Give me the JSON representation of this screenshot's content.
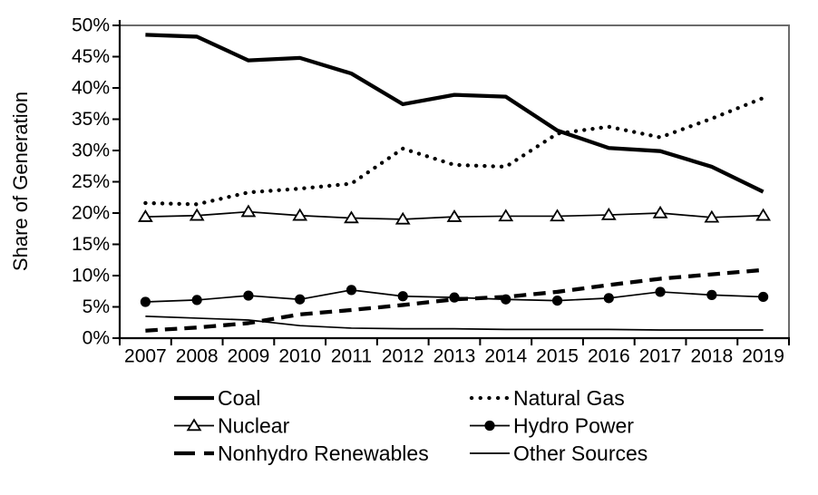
{
  "chart_data": {
    "type": "line",
    "title": "",
    "xlabel": "",
    "ylabel": "Share of Generation",
    "ylim": [
      0,
      50
    ],
    "grid": false,
    "legend_position": "bottom, two columns",
    "y_ticks": [
      "0%",
      "5%",
      "10%",
      "15%",
      "20%",
      "25%",
      "30%",
      "35%",
      "40%",
      "45%",
      "50%"
    ],
    "y_tick_values": [
      0,
      5,
      10,
      15,
      20,
      25,
      30,
      35,
      40,
      45,
      50
    ],
    "x_labels": [
      "2007",
      "2008",
      "2009",
      "2010",
      "2011",
      "2012",
      "2013",
      "2014",
      "2015",
      "2016",
      "2017",
      "2018",
      "2019"
    ],
    "series": [
      {
        "name": "Coal",
        "style": "solid",
        "weight": "thick",
        "marker": "none",
        "values": [
          48.5,
          48.2,
          44.4,
          44.8,
          42.3,
          37.4,
          38.9,
          38.6,
          33.2,
          30.4,
          29.9,
          27.4,
          23.4
        ]
      },
      {
        "name": "Natural Gas",
        "style": "dotted",
        "weight": "thick",
        "marker": "none",
        "values": [
          21.6,
          21.4,
          23.3,
          23.9,
          24.7,
          30.3,
          27.7,
          27.4,
          32.7,
          33.8,
          32.1,
          35.1,
          38.4
        ]
      },
      {
        "name": "Nuclear",
        "style": "solid",
        "weight": "thin",
        "marker": "open-triangle",
        "values": [
          19.4,
          19.6,
          20.2,
          19.6,
          19.2,
          19.0,
          19.4,
          19.5,
          19.5,
          19.7,
          20.0,
          19.3,
          19.6
        ]
      },
      {
        "name": "Hydro Power",
        "style": "solid",
        "weight": "thin",
        "marker": "filled-circle",
        "values": [
          5.8,
          6.1,
          6.8,
          6.2,
          7.7,
          6.7,
          6.5,
          6.2,
          6.0,
          6.4,
          7.4,
          6.9,
          6.6
        ]
      },
      {
        "name": "Nonhydro Renewables",
        "style": "dashed",
        "weight": "thick",
        "marker": "none",
        "values": [
          1.2,
          1.7,
          2.4,
          3.8,
          4.5,
          5.3,
          6.2,
          6.6,
          7.4,
          8.5,
          9.5,
          10.2,
          10.9
        ]
      },
      {
        "name": "Other Sources",
        "style": "solid",
        "weight": "thin",
        "marker": "none",
        "values": [
          3.5,
          3.2,
          2.9,
          2.0,
          1.6,
          1.5,
          1.5,
          1.4,
          1.4,
          1.4,
          1.3,
          1.3,
          1.3
        ]
      }
    ],
    "legend_rows": [
      [
        "Coal",
        "Natural Gas"
      ],
      [
        "Nuclear",
        "Hydro Power"
      ],
      [
        "Nonhydro Renewables",
        "Other Sources"
      ]
    ],
    "colors": {
      "line": "#000000",
      "frame": "#6b6b6b",
      "axis": "#000000",
      "background": "#ffffff",
      "marker_fill_open": "#ffffff"
    }
  }
}
